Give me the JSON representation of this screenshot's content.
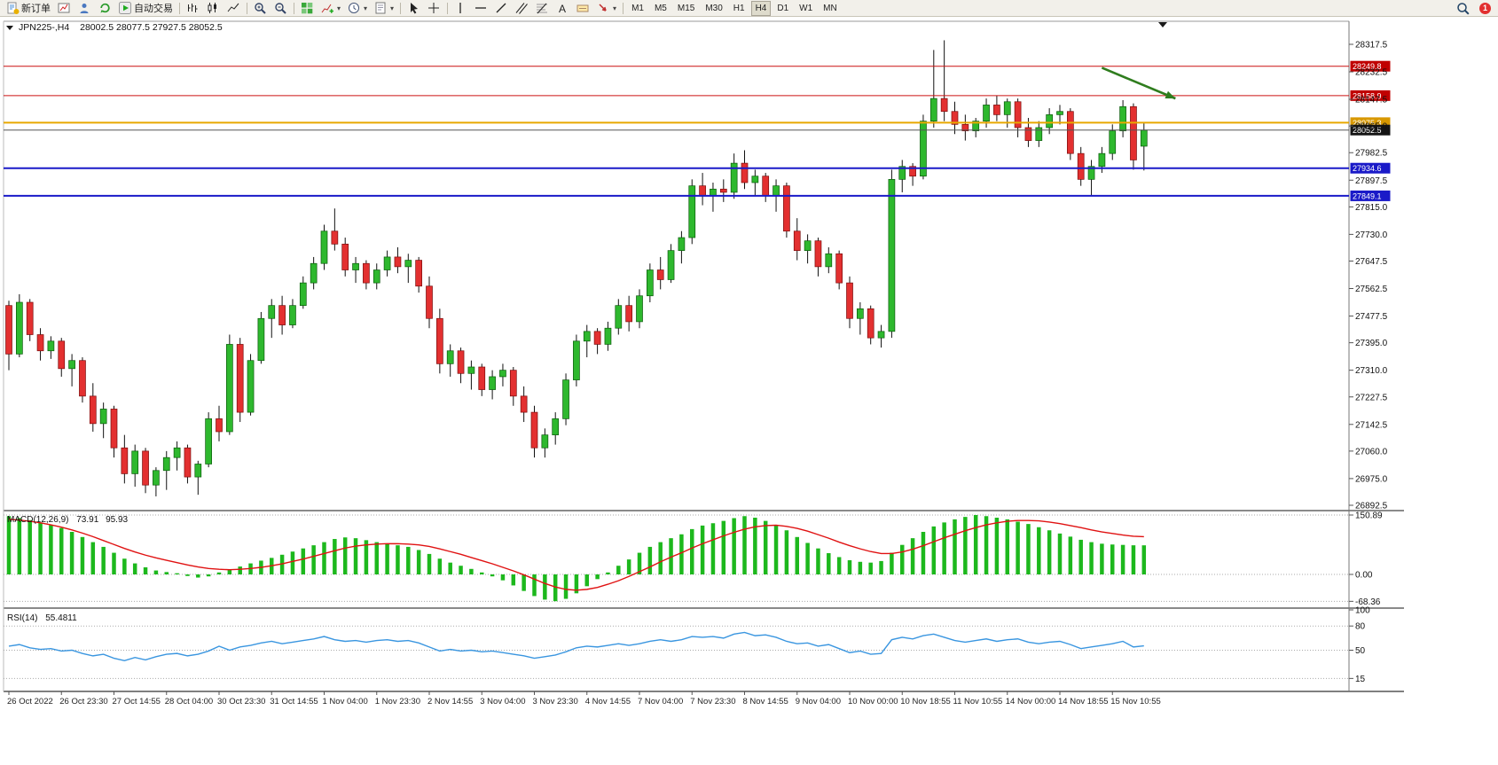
{
  "toolbar": {
    "new_order_label": "新订单",
    "auto_trading_label": "自动交易",
    "buttons": [
      {
        "name": "new-order",
        "icon": "doc",
        "label": "新订单"
      },
      {
        "name": "chart-window",
        "icon": "chart"
      },
      {
        "name": "market-watch",
        "icon": "person"
      },
      {
        "name": "navigator",
        "icon": "cycle"
      },
      {
        "name": "auto-trading",
        "icon": "play",
        "label": "自动交易"
      },
      {
        "sep": true
      },
      {
        "name": "bar-chart-mode",
        "icon": "bars"
      },
      {
        "name": "candlestick-mode",
        "icon": "candles"
      },
      {
        "name": "line-chart-mode",
        "icon": "linechart"
      },
      {
        "sep": true
      },
      {
        "name": "zoom-in",
        "icon": "zoomin"
      },
      {
        "name": "zoom-out",
        "icon": "zoomout"
      },
      {
        "sep": true
      },
      {
        "name": "tile-windows",
        "icon": "grid"
      },
      {
        "name": "indicators-list",
        "icon": "indicator",
        "dropdown": true
      },
      {
        "name": "periods",
        "icon": "clock",
        "dropdown": true
      },
      {
        "name": "templates",
        "icon": "template",
        "dropdown": true
      },
      {
        "sep": true
      },
      {
        "name": "cursor",
        "icon": "cursor"
      },
      {
        "name": "crosshair",
        "icon": "crosshair"
      },
      {
        "sep": true
      },
      {
        "name": "vertical-line",
        "icon": "vline"
      },
      {
        "name": "horizontal-line",
        "icon": "hline"
      },
      {
        "name": "trendline",
        "icon": "trend"
      },
      {
        "name": "equidistant-channel",
        "icon": "channel"
      },
      {
        "name": "fibonacci-retracement",
        "icon": "fibo"
      },
      {
        "name": "text",
        "icon": "textA"
      },
      {
        "name": "text-label",
        "icon": "label"
      },
      {
        "name": "arrows",
        "icon": "arrowobj",
        "dropdown": true
      },
      {
        "sep": true
      }
    ],
    "timeframes": [
      "M1",
      "M5",
      "M15",
      "M30",
      "H1",
      "H4",
      "D1",
      "W1",
      "MN"
    ],
    "active_timeframe": "H4",
    "notification_count": "1"
  },
  "chart_header": {
    "symbol": "JPN225-,H4",
    "ohlc": "28002.5 28077.5 27927.5 28052.5"
  },
  "chart_data": {
    "type": "candlestick",
    "symbol": "JPN225-",
    "timeframe": "H4",
    "current_bar": {
      "open": 28002.5,
      "high": 28077.5,
      "low": 27927.5,
      "close": 28052.5
    },
    "ylim": [
      26860,
      28390
    ],
    "price_axis_ticks": [
      "28317.5",
      "28232.5",
      "28147.5",
      "28065.0",
      "27982.5",
      "27897.5",
      "27815.0",
      "27730.0",
      "27647.5",
      "27562.5",
      "27477.5",
      "27395.0",
      "27310.0",
      "27227.5",
      "27142.5",
      "27060.0",
      "26975.0",
      "26892.5"
    ],
    "time_axis_labels": [
      "26 Oct 2022",
      "26 Oct 23:30",
      "27 Oct 14:55",
      "28 Oct 04:00",
      "30 Oct 23:30",
      "31 Oct 14:55",
      "1 Nov 04:00",
      "1 Nov 23:30",
      "2 Nov 14:55",
      "3 Nov 04:00",
      "3 Nov 23:30",
      "4 Nov 14:55",
      "7 Nov 04:00",
      "7 Nov 23:30",
      "8 Nov 14:55",
      "9 Nov 04:00",
      "10 Nov 00:00",
      "10 Nov 18:55",
      "11 Nov 10:55",
      "14 Nov 00:00",
      "14 Nov 18:55",
      "15 Nov 10:55"
    ],
    "x_label_every_n_bars": 5,
    "colors": {
      "candle_up": "#2eb82e",
      "candle_up_border": "#0a5a0a",
      "candle_down": "#e33030",
      "candle_down_border": "#7a0c0c",
      "wick": "#111111"
    },
    "horizontal_levels": [
      {
        "price": 28249.8,
        "label": "28249.8",
        "color": "#cc1010",
        "badge_color": "#c00000",
        "line_width": 1
      },
      {
        "price": 28158.9,
        "label": "28158.9",
        "color": "#cc1010",
        "badge_color": "#c00000",
        "line_width": 1
      },
      {
        "price": 28075.3,
        "label": "28075.3",
        "color": "#e8a800",
        "badge_color": "#d89800",
        "line_width": 2
      },
      {
        "price": 27934.6,
        "label": "27934.6",
        "color": "#1a1ac8",
        "badge_color": "#1a1ac8",
        "line_width": 2
      },
      {
        "price": 27849.1,
        "label": "27849.1",
        "color": "#1a1ac8",
        "badge_color": "#1a1ac8",
        "line_width": 2
      }
    ],
    "bid_line": {
      "price": 28052.5,
      "label": "28052.5",
      "color": "#555555",
      "badge_color": "#141414"
    },
    "arrow_annotation": {
      "x1_bar": 104,
      "price1": 28245,
      "x2_bar": 111,
      "price2": 28150,
      "color": "#2f7d1e"
    },
    "candles_ohlc": [
      [
        27510,
        27525,
        27310,
        27360
      ],
      [
        27360,
        27545,
        27350,
        27520
      ],
      [
        27520,
        27530,
        27400,
        27420
      ],
      [
        27420,
        27440,
        27340,
        27370
      ],
      [
        27370,
        27415,
        27345,
        27400
      ],
      [
        27400,
        27410,
        27290,
        27315
      ],
      [
        27315,
        27360,
        27260,
        27340
      ],
      [
        27340,
        27350,
        27210,
        27230
      ],
      [
        27230,
        27270,
        27120,
        27145
      ],
      [
        27145,
        27210,
        27100,
        27190
      ],
      [
        27190,
        27200,
        27040,
        27070
      ],
      [
        27070,
        27110,
        26960,
        26990
      ],
      [
        26990,
        27080,
        26950,
        27060
      ],
      [
        27060,
        27070,
        26930,
        26955
      ],
      [
        26955,
        27010,
        26920,
        27000
      ],
      [
        27000,
        27060,
        26940,
        27040
      ],
      [
        27040,
        27090,
        27000,
        27070
      ],
      [
        27070,
        27080,
        26960,
        26980
      ],
      [
        26980,
        27030,
        26925,
        27020
      ],
      [
        27020,
        27180,
        27010,
        27160
      ],
      [
        27160,
        27200,
        27090,
        27120
      ],
      [
        27120,
        27420,
        27110,
        27390
      ],
      [
        27390,
        27410,
        27150,
        27180
      ],
      [
        27180,
        27360,
        27170,
        27340
      ],
      [
        27340,
        27490,
        27330,
        27470
      ],
      [
        27470,
        27530,
        27410,
        27510
      ],
      [
        27510,
        27540,
        27420,
        27450
      ],
      [
        27450,
        27530,
        27440,
        27510
      ],
      [
        27510,
        27600,
        27500,
        27580
      ],
      [
        27580,
        27660,
        27560,
        27640
      ],
      [
        27640,
        27760,
        27620,
        27740
      ],
      [
        27740,
        27810,
        27680,
        27700
      ],
      [
        27700,
        27720,
        27600,
        27620
      ],
      [
        27620,
        27660,
        27580,
        27640
      ],
      [
        27640,
        27650,
        27560,
        27580
      ],
      [
        27580,
        27640,
        27560,
        27620
      ],
      [
        27620,
        27680,
        27600,
        27660
      ],
      [
        27660,
        27690,
        27610,
        27630
      ],
      [
        27630,
        27670,
        27580,
        27650
      ],
      [
        27650,
        27660,
        27550,
        27570
      ],
      [
        27570,
        27600,
        27440,
        27470
      ],
      [
        27470,
        27500,
        27300,
        27330
      ],
      [
        27330,
        27390,
        27290,
        27370
      ],
      [
        27370,
        27380,
        27270,
        27300
      ],
      [
        27300,
        27340,
        27250,
        27320
      ],
      [
        27320,
        27330,
        27230,
        27250
      ],
      [
        27250,
        27310,
        27220,
        27290
      ],
      [
        27290,
        27330,
        27260,
        27310
      ],
      [
        27310,
        27320,
        27200,
        27230
      ],
      [
        27230,
        27260,
        27150,
        27180
      ],
      [
        27180,
        27200,
        27040,
        27070
      ],
      [
        27070,
        27130,
        27040,
        27110
      ],
      [
        27110,
        27180,
        27080,
        27160
      ],
      [
        27160,
        27300,
        27140,
        27280
      ],
      [
        27280,
        27420,
        27260,
        27400
      ],
      [
        27400,
        27450,
        27350,
        27430
      ],
      [
        27430,
        27440,
        27360,
        27390
      ],
      [
        27390,
        27460,
        27370,
        27440
      ],
      [
        27440,
        27530,
        27420,
        27510
      ],
      [
        27510,
        27540,
        27430,
        27460
      ],
      [
        27460,
        27560,
        27440,
        27540
      ],
      [
        27540,
        27640,
        27520,
        27620
      ],
      [
        27620,
        27660,
        27560,
        27590
      ],
      [
        27590,
        27700,
        27580,
        27680
      ],
      [
        27680,
        27740,
        27640,
        27720
      ],
      [
        27720,
        27900,
        27700,
        27880
      ],
      [
        27880,
        27920,
        27820,
        27850
      ],
      [
        27850,
        27890,
        27800,
        27870
      ],
      [
        27870,
        27900,
        27830,
        27860
      ],
      [
        27860,
        27980,
        27840,
        27950
      ],
      [
        27950,
        27990,
        27870,
        27890
      ],
      [
        27890,
        27930,
        27850,
        27910
      ],
      [
        27910,
        27920,
        27830,
        27850
      ],
      [
        27850,
        27900,
        27800,
        27880
      ],
      [
        27880,
        27890,
        27720,
        27740
      ],
      [
        27740,
        27780,
        27650,
        27680
      ],
      [
        27680,
        27730,
        27640,
        27710
      ],
      [
        27710,
        27720,
        27600,
        27630
      ],
      [
        27630,
        27690,
        27610,
        27670
      ],
      [
        27670,
        27680,
        27560,
        27580
      ],
      [
        27580,
        27600,
        27440,
        27470
      ],
      [
        27470,
        27520,
        27420,
        27500
      ],
      [
        27500,
        27510,
        27390,
        27410
      ],
      [
        27410,
        27450,
        27380,
        27430
      ],
      [
        27430,
        27930,
        27410,
        27900
      ],
      [
        27900,
        27960,
        27860,
        27940
      ],
      [
        27940,
        27950,
        27880,
        27910
      ],
      [
        27910,
        28100,
        27900,
        28080
      ],
      [
        28080,
        28300,
        28060,
        28150
      ],
      [
        28150,
        28330,
        28080,
        28110
      ],
      [
        28110,
        28140,
        28040,
        28070
      ],
      [
        28070,
        28100,
        28020,
        28050
      ],
      [
        28050,
        28090,
        28030,
        28080
      ],
      [
        28080,
        28150,
        28060,
        28130
      ],
      [
        28130,
        28160,
        28080,
        28100
      ],
      [
        28100,
        28150,
        28060,
        28140
      ],
      [
        28140,
        28150,
        28030,
        28060
      ],
      [
        28060,
        28090,
        28000,
        28020
      ],
      [
        28020,
        28080,
        28000,
        28060
      ],
      [
        28060,
        28120,
        28040,
        28100
      ],
      [
        28100,
        28130,
        28070,
        28110
      ],
      [
        28110,
        28120,
        27960,
        27980
      ],
      [
        27980,
        28000,
        27880,
        27900
      ],
      [
        27900,
        27960,
        27850,
        27940
      ],
      [
        27940,
        28000,
        27920,
        27980
      ],
      [
        27980,
        28070,
        27960,
        28050
      ],
      [
        28050,
        28145,
        28030,
        28125
      ],
      [
        28125,
        28135,
        27930,
        27960
      ],
      [
        28002.5,
        28077.5,
        27927.5,
        28052.5
      ]
    ],
    "indicators": {
      "macd": {
        "title": "MACD(12,26,9)",
        "macd_value": "73.91",
        "signal_value": "95.93",
        "axis_labels": [
          "150.89",
          "0.00",
          "-68.36"
        ],
        "axis_values": [
          150.89,
          0.0,
          -68.36
        ],
        "hist_color": "#1db81d",
        "signal_color": "#e01212",
        "histogram": [
          148,
          143,
          138,
          132,
          125,
          118,
          108,
          95,
          82,
          70,
          55,
          40,
          28,
          18,
          10,
          6,
          3,
          -4,
          -8,
          -5,
          5,
          12,
          20,
          28,
          35,
          42,
          50,
          58,
          66,
          74,
          82,
          90,
          94,
          92,
          87,
          82,
          78,
          74,
          70,
          62,
          52,
          40,
          30,
          22,
          14,
          5,
          -5,
          -15,
          -28,
          -42,
          -55,
          -64,
          -68,
          -62,
          -48,
          -30,
          -12,
          5,
          22,
          38,
          55,
          70,
          82,
          92,
          102,
          115,
          124,
          130,
          136,
          143,
          148,
          144,
          136,
          126,
          112,
          95,
          80,
          66,
          54,
          44,
          36,
          32,
          30,
          34,
          55,
          75,
          92,
          108,
          122,
          132,
          140,
          146,
          150.89,
          148,
          144,
          140,
          134,
          128,
          120,
          112,
          104,
          96,
          88,
          82,
          78,
          76,
          75,
          74,
          73.91
        ],
        "signal": [
          140,
          138,
          135,
          131,
          126,
          120,
          113,
          105,
          96,
          86,
          76,
          66,
          57,
          49,
          42,
          36,
          30,
          24,
          19,
          15,
          13,
          12,
          13,
          15,
          18,
          22,
          27,
          33,
          39,
          46,
          53,
          60,
          67,
          72,
          75,
          77,
          78,
          78,
          77,
          75,
          71,
          65,
          58,
          51,
          43,
          35,
          27,
          18,
          9,
          -1,
          -12,
          -23,
          -32,
          -38,
          -40,
          -38,
          -33,
          -25,
          -16,
          -5,
          7,
          19,
          32,
          44,
          55,
          67,
          78,
          88,
          98,
          107,
          115,
          121,
          124,
          125,
          122,
          117,
          110,
          101,
          92,
          82,
          73,
          65,
          58,
          53,
          53,
          57,
          64,
          73,
          83,
          93,
          102,
          111,
          119,
          126,
          131,
          135,
          137,
          137,
          136,
          133,
          129,
          124,
          119,
          113,
          108,
          104,
          100,
          97,
          95.93
        ]
      },
      "rsi": {
        "title": "RSI(14)",
        "value": "55.4811",
        "axis_labels": [
          "100",
          "80",
          "50",
          "15"
        ],
        "axis_values": [
          100,
          80,
          50,
          15
        ],
        "dashed_levels": [
          80,
          50,
          15
        ],
        "line_color": "#3a96e0",
        "values": [
          55,
          57,
          53,
          51,
          52,
          49,
          50,
          46,
          43,
          45,
          40,
          37,
          41,
          38,
          42,
          45,
          46,
          43,
          45,
          49,
          55,
          50,
          54,
          56,
          59,
          61,
          58,
          60,
          62,
          64,
          67,
          63,
          61,
          62,
          60,
          62,
          63,
          61,
          62,
          59,
          54,
          49,
          51,
          49,
          50,
          48,
          49,
          47,
          45,
          43,
          40,
          42,
          44,
          48,
          53,
          55,
          54,
          56,
          58,
          56,
          58,
          61,
          63,
          61,
          63,
          67,
          66,
          67,
          65,
          70,
          72,
          68,
          69,
          66,
          61,
          58,
          59,
          55,
          57,
          52,
          47,
          49,
          45,
          46,
          63,
          66,
          64,
          68,
          70,
          66,
          62,
          60,
          62,
          64,
          61,
          63,
          64,
          60,
          58,
          60,
          61,
          57,
          52,
          54,
          56,
          58,
          61,
          54,
          55.48
        ]
      }
    }
  }
}
